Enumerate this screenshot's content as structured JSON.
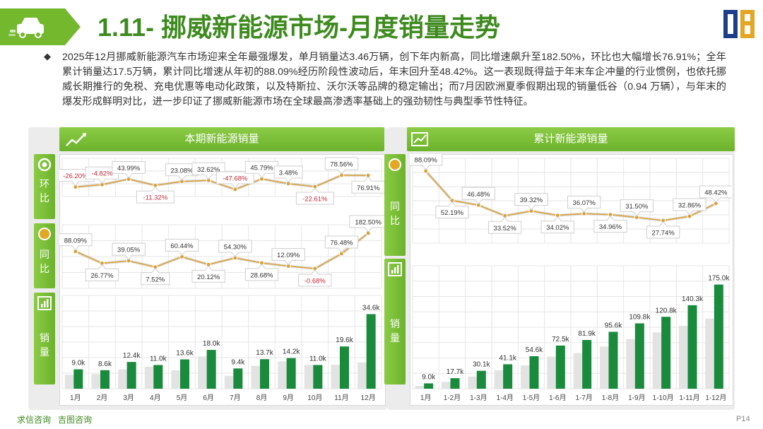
{
  "header": {
    "title": "1.11- 挪威新能源市场-月度销量走势",
    "page_number": "P14"
  },
  "summary": {
    "bullet": "◆",
    "text": "2025年12月挪威新能源汽车市场迎来全年最强爆发，单月销量达3.46万辆，创下年内新高，同比增速飙升至182.50%，环比也大幅增长76.91%；全年累计销量达17.5万辆，累计同比增速从年初的88.09%经历阶段性波动后，年末回升至48.42%。这一表现既得益于年末车企冲量的行业惯例，也依托挪威长期推行的免税、充电优惠等电动化政策，以及特斯拉、沃尔沃等品牌的稳定输出；而7月因欧洲夏季假期出现的销量低谷（0.94 万辆），与年末的爆发形成鲜明对比，进一步印证了挪威新能源市场在全球最高渗透率基础上的强劲韧性与典型季节性特征。"
  },
  "footer": {
    "source1": "求信咨询",
    "source2": "吉图咨询"
  },
  "colors": {
    "accent_green": "#74b82e",
    "bar_green": "#1a8a3c",
    "bar_grey": "#e3e3e3",
    "line_gold": "#d9a23a",
    "negative_red": "#c0283a"
  },
  "left_panel": {
    "banner": "本期新能源销量",
    "tab_mom": "环比",
    "tab_yoy": "同比",
    "tab_sales": "销量",
    "icon_mom": "target-icon",
    "icon_yoy": "sun-icon",
    "icon_sales": "bar-chart-icon"
  },
  "right_panel": {
    "banner": "累计新能源销量",
    "tab_yoy": "同比",
    "tab_sales": "销量",
    "icon_yoy": "sun-icon",
    "icon_sales": "bar-chart-icon"
  },
  "chart_data": [
    {
      "id": "monthly",
      "type": "bar",
      "categories": [
        "1月",
        "2月",
        "3月",
        "4月",
        "5月",
        "6月",
        "7月",
        "8月",
        "9月",
        "10月",
        "11月",
        "12月"
      ],
      "series": [
        {
          "values": [
            9.0,
            8.6,
            12.4,
            11.0,
            13.6,
            18.0,
            9.4,
            13.7,
            14.2,
            11.0,
            19.6,
            34.6
          ]
        }
      ],
      "value_labels": [
        "9.0k",
        "8.6k",
        "12.4k",
        "11.0k",
        "13.6k",
        "18.0k",
        "9.4k",
        "13.7k",
        "14.2k",
        "11.0k",
        "19.6k",
        "34.6k"
      ],
      "prior_year_estimate": [
        6.5,
        6.8,
        9.0,
        10.2,
        8.5,
        15.0,
        6.0,
        10.6,
        12.7,
        11.1,
        11.1,
        12.2
      ],
      "ylim": [
        0,
        40
      ]
    },
    {
      "id": "monthly_mom",
      "type": "line",
      "categories": [
        "1月",
        "2月",
        "3月",
        "4月",
        "5月",
        "6月",
        "7月",
        "8月",
        "9月",
        "10月",
        "11月",
        "12月"
      ],
      "series": [
        {
          "values": [
            -26.2,
            -4.82,
            43.99,
            -11.32,
            23.08,
            32.62,
            -47.68,
            45.79,
            3.48,
            -22.61,
            78.56,
            76.91
          ]
        }
      ],
      "value_labels": [
        "-26.20%",
        "-4.82%",
        "43.99%",
        "-11.32%",
        "23.08%",
        "32.62%",
        "-47.68%",
        "45.79%",
        "3.48%",
        "-22.61%",
        "78.56%",
        "76.91%"
      ]
    },
    {
      "id": "monthly_yoy",
      "type": "line",
      "categories": [
        "1月",
        "2月",
        "3月",
        "4月",
        "5月",
        "6月",
        "7月",
        "8月",
        "9月",
        "10月",
        "11月",
        "12月"
      ],
      "series": [
        {
          "values": [
            88.09,
            26.77,
            39.05,
            7.52,
            60.44,
            20.12,
            54.3,
            28.68,
            12.09,
            -0.68,
            76.48,
            182.5
          ]
        }
      ],
      "value_labels": [
        "88.09%",
        "26.77%",
        "39.05%",
        "7.52%",
        "60.44%",
        "20.12%",
        "54.30%",
        "28.68%",
        "12.09%",
        "-0.68%",
        "76.48%",
        "182.50%"
      ]
    },
    {
      "id": "cumulative",
      "type": "bar",
      "categories": [
        "1月",
        "1-2月",
        "1-3月",
        "1-4月",
        "1-5月",
        "1-6月",
        "1-7月",
        "1-8月",
        "1-9月",
        "1-10月",
        "1-11月",
        "1-12月"
      ],
      "series": [
        {
          "values": [
            9.0,
            17.7,
            30.1,
            41.1,
            54.6,
            72.5,
            81.9,
            95.6,
            109.8,
            120.8,
            140.3,
            175.0
          ]
        }
      ],
      "value_labels": [
        "9.0k",
        "17.7k",
        "30.1k",
        "41.1k",
        "54.6k",
        "72.5k",
        "81.9k",
        "95.6k",
        "109.8k",
        "120.8k",
        "140.3k",
        "175.0k"
      ],
      "prior_year_estimate": [
        4.8,
        11.6,
        20.6,
        30.8,
        39.2,
        54.0,
        60.0,
        70.8,
        83.5,
        94.6,
        105.8,
        117.9
      ],
      "ylim": [
        0,
        190
      ]
    },
    {
      "id": "cumulative_yoy",
      "type": "line",
      "categories": [
        "1月",
        "1-2月",
        "1-3月",
        "1-4月",
        "1-5月",
        "1-6月",
        "1-7月",
        "1-8月",
        "1-9月",
        "1-10月",
        "1-11月",
        "1-12月"
      ],
      "series": [
        {
          "values": [
            88.09,
            52.19,
            46.48,
            33.52,
            39.32,
            34.02,
            36.07,
            34.96,
            31.5,
            27.74,
            32.86,
            48.42
          ]
        }
      ],
      "value_labels": [
        "88.09%",
        "52.19%",
        "46.48%",
        "33.52%",
        "39.32%",
        "34.02%",
        "36.07%",
        "34.96%",
        "31.50%",
        "27.74%",
        "32.86%",
        "48.42%"
      ]
    }
  ]
}
